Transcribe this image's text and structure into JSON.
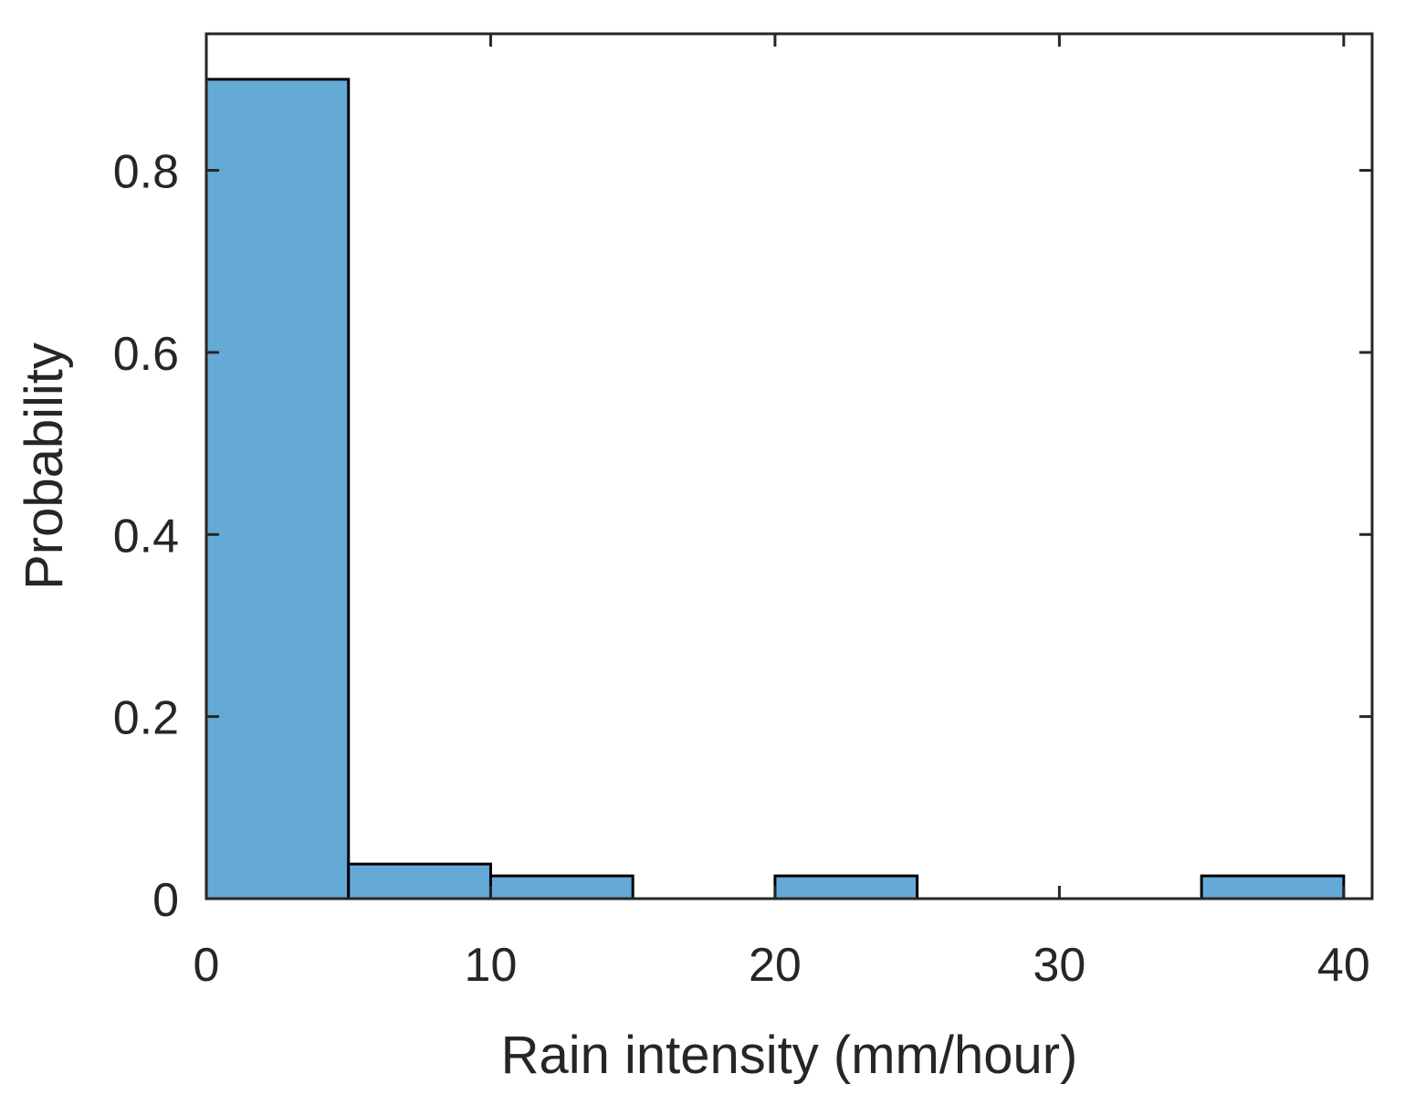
{
  "chart_data": {
    "type": "bar",
    "subtype": "histogram",
    "xlabel": "Rain intensity (mm/hour)",
    "ylabel": "Probability",
    "xlim": [
      0,
      41
    ],
    "ylim": [
      0,
      0.95
    ],
    "xticks": [
      0,
      10,
      20,
      30,
      40
    ],
    "xtick_labels": [
      "0",
      "10",
      "20",
      "30",
      "40"
    ],
    "yticks": [
      0,
      0.2,
      0.4,
      0.6,
      0.8
    ],
    "ytick_labels": [
      "0",
      "0.2",
      "0.4",
      "0.6",
      "0.8"
    ],
    "grid": false,
    "bar_color": "#65A9D7",
    "edge_color": "#000000",
    "bins": [
      {
        "x0": 0,
        "x1": 5,
        "value": 0.9
      },
      {
        "x0": 5,
        "x1": 10,
        "value": 0.038
      },
      {
        "x0": 10,
        "x1": 15,
        "value": 0.025
      },
      {
        "x0": 20,
        "x1": 25,
        "value": 0.025
      },
      {
        "x0": 35,
        "x1": 40,
        "value": 0.025
      }
    ]
  }
}
